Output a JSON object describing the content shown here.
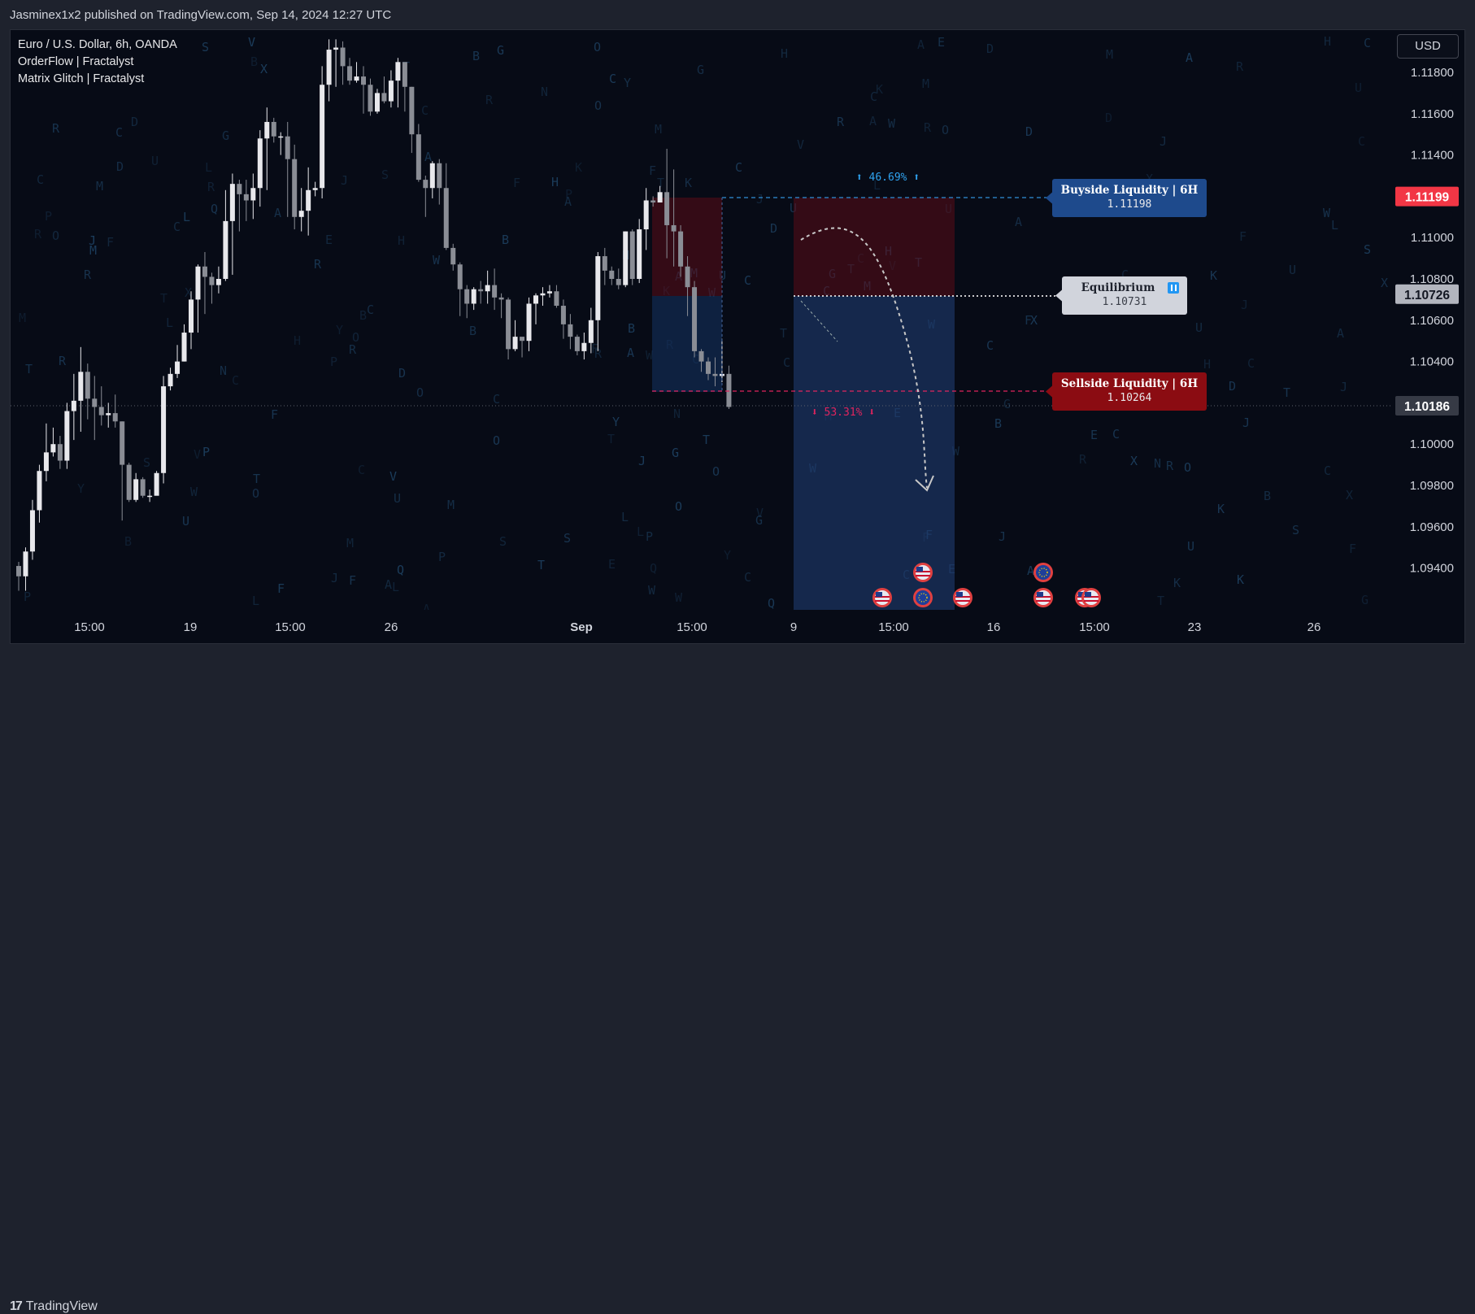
{
  "header": {
    "published_text": "Jasminex1x2 published on TradingView.com, Sep 14, 2024 12:27 UTC"
  },
  "legend": {
    "symbol": "Euro / U.S. Dollar, 6h, OANDA",
    "indicator1": "OrderFlow | Fractalyst",
    "indicator2": "Matrix Glitch | Fractalyst"
  },
  "currency_button": "USD",
  "footer": {
    "brand": "TradingView"
  },
  "colors": {
    "background": "#070b16",
    "up_candle": "#e8e8ec",
    "down_candle": "#8a8d95",
    "buyside": "#1e4a8c",
    "sellside": "#8b0c12",
    "equilibrium": "#d1d4dc",
    "price_red": "#f23645",
    "matrix": "#1c3d5c"
  },
  "chart_data": {
    "type": "candlestick",
    "symbol": "EURUSD",
    "timeframe": "6h",
    "y_ticks": [
      "1.11800",
      "1.11600",
      "1.11400",
      "1.11200",
      "1.11000",
      "1.10800",
      "1.10600",
      "1.10400",
      "1.10200",
      "1.10000",
      "1.09800",
      "1.09600",
      "1.09400"
    ],
    "x_ticks": [
      "15:00",
      "19",
      "15:00",
      "26",
      "Sep",
      "15:00",
      "9",
      "15:00",
      "16",
      "15:00",
      "23",
      "26"
    ],
    "ylim": [
      1.0925,
      1.1195
    ],
    "price_badges": [
      {
        "label": "1.11199",
        "value": 1.11199,
        "style": "red"
      },
      {
        "label": "1.10726",
        "value": 1.10726,
        "style": "gray"
      },
      {
        "label": "1.10186",
        "value": 1.10186,
        "style": "dark"
      }
    ],
    "annotations": {
      "buyside": {
        "title": "Buyside Liquidity",
        "tf": "6H",
        "price_label": "1.11198",
        "value": 1.11198
      },
      "equilibrium": {
        "title": "Equilibrium",
        "price_label": "1.10731",
        "value": 1.10731
      },
      "sellside": {
        "title": "Sellside Liquidity",
        "tf": "6H",
        "price_label": "1.10264",
        "value": 1.10264
      },
      "pct_up": "⬆ 46.69% ⬆",
      "pct_down": "⬇ 53.31% ⬇"
    },
    "candles": [
      [
        1.0941,
        1.0936,
        1.0943,
        1.0929
      ],
      [
        1.0936,
        1.0948,
        1.095,
        1.0929
      ],
      [
        1.0948,
        1.0968,
        1.0973,
        1.0944
      ],
      [
        1.0968,
        1.0987,
        1.099,
        1.0962
      ],
      [
        1.0987,
        1.0996,
        1.101,
        1.0982
      ],
      [
        1.0996,
        1.1,
        1.1008,
        1.0994
      ],
      [
        1.1,
        1.0992,
        1.1004,
        1.0988
      ],
      [
        1.0992,
        1.1016,
        1.102,
        1.0988
      ],
      [
        1.1016,
        1.1021,
        1.1034,
        1.1002
      ],
      [
        1.1021,
        1.1035,
        1.1047,
        1.1006
      ],
      [
        1.1035,
        1.1022,
        1.1039,
        1.1012
      ],
      [
        1.1022,
        1.1018,
        1.1033,
        1.1002
      ],
      [
        1.1018,
        1.1014,
        1.1028,
        1.1009
      ],
      [
        1.1014,
        1.1015,
        1.102,
        1.1008
      ],
      [
        1.1015,
        1.1011,
        1.1024,
        1.1008
      ],
      [
        1.1011,
        1.099,
        1.1011,
        1.0963
      ],
      [
        1.099,
        1.0973,
        1.0991,
        1.0972
      ],
      [
        1.0973,
        1.0983,
        1.0986,
        1.0972
      ],
      [
        1.0983,
        1.0975,
        1.0984,
        1.0974
      ],
      [
        1.0975,
        1.0975,
        1.0978,
        1.0972
      ],
      [
        1.0975,
        1.0986,
        1.0987,
        1.0977
      ],
      [
        1.0986,
        1.1028,
        1.1033,
        1.0981
      ],
      [
        1.1028,
        1.1034,
        1.1037,
        1.1026
      ],
      [
        1.1034,
        1.104,
        1.1048,
        1.1032
      ],
      [
        1.104,
        1.1054,
        1.1058,
        1.104
      ],
      [
        1.1054,
        1.107,
        1.1074,
        1.1046
      ],
      [
        1.107,
        1.1086,
        1.1087,
        1.1054
      ],
      [
        1.1086,
        1.1081,
        1.1093,
        1.1063
      ],
      [
        1.1081,
        1.1077,
        1.1083,
        1.1068
      ],
      [
        1.1077,
        1.108,
        1.1086,
        1.1073
      ],
      [
        1.108,
        1.1108,
        1.1123,
        1.1079
      ],
      [
        1.1108,
        1.1126,
        1.1131,
        1.1082
      ],
      [
        1.1126,
        1.1121,
        1.1128,
        1.1103
      ],
      [
        1.1121,
        1.1118,
        1.1128,
        1.1108
      ],
      [
        1.1118,
        1.1124,
        1.1131,
        1.1109
      ],
      [
        1.1124,
        1.1148,
        1.1152,
        1.1115
      ],
      [
        1.1148,
        1.1156,
        1.1163,
        1.1123
      ],
      [
        1.1156,
        1.1149,
        1.1158,
        1.1146
      ],
      [
        1.1149,
        1.1149,
        1.1151,
        1.114
      ],
      [
        1.1149,
        1.1138,
        1.1156,
        1.111
      ],
      [
        1.1138,
        1.111,
        1.1145,
        1.1104
      ],
      [
        1.111,
        1.1113,
        1.1124,
        1.1103
      ],
      [
        1.1113,
        1.1123,
        1.1134,
        1.1101
      ],
      [
        1.1123,
        1.1124,
        1.1127,
        1.112
      ],
      [
        1.1124,
        1.1174,
        1.1183,
        1.1119
      ],
      [
        1.1174,
        1.1191,
        1.1196,
        1.1166
      ],
      [
        1.1191,
        1.1192,
        1.1196,
        1.1173
      ],
      [
        1.1192,
        1.1183,
        1.1195,
        1.1174
      ],
      [
        1.1183,
        1.1176,
        1.1187,
        1.1174
      ],
      [
        1.1176,
        1.1178,
        1.1185,
        1.1175
      ],
      [
        1.1178,
        1.1174,
        1.1183,
        1.116
      ],
      [
        1.1174,
        1.1161,
        1.1177,
        1.1159
      ],
      [
        1.1161,
        1.117,
        1.1172,
        1.116
      ],
      [
        1.117,
        1.1166,
        1.1178,
        1.1165
      ],
      [
        1.1166,
        1.1176,
        1.1181,
        1.1163
      ],
      [
        1.1176,
        1.1185,
        1.1187,
        1.1163
      ],
      [
        1.1185,
        1.1173,
        1.1184,
        1.1161
      ],
      [
        1.1173,
        1.115,
        1.1173,
        1.1141
      ],
      [
        1.115,
        1.1128,
        1.1155,
        1.1127
      ],
      [
        1.1128,
        1.1124,
        1.113,
        1.111
      ],
      [
        1.1124,
        1.1136,
        1.1137,
        1.1119
      ],
      [
        1.1136,
        1.1124,
        1.1138,
        1.1116
      ],
      [
        1.1124,
        1.1095,
        1.1136,
        1.1094
      ],
      [
        1.1095,
        1.1087,
        1.1097,
        1.1084
      ],
      [
        1.1087,
        1.1075,
        1.1088,
        1.1062
      ],
      [
        1.1075,
        1.1068,
        1.1077,
        1.1061
      ],
      [
        1.1068,
        1.1075,
        1.1076,
        1.1065
      ],
      [
        1.1075,
        1.1074,
        1.1079,
        1.1068
      ],
      [
        1.1074,
        1.1077,
        1.1084,
        1.1068
      ],
      [
        1.1077,
        1.1071,
        1.1085,
        1.1065
      ],
      [
        1.1071,
        1.107,
        1.1073,
        1.1061
      ],
      [
        1.107,
        1.1046,
        1.1071,
        1.1041
      ],
      [
        1.1046,
        1.1052,
        1.106,
        1.1045
      ],
      [
        1.1052,
        1.105,
        1.1051,
        1.1042
      ],
      [
        1.105,
        1.1068,
        1.1071,
        1.1045
      ],
      [
        1.1068,
        1.1072,
        1.1073,
        1.1058
      ],
      [
        1.1072,
        1.1073,
        1.1076,
        1.1067
      ],
      [
        1.1073,
        1.1074,
        1.1077,
        1.1071
      ],
      [
        1.1074,
        1.1067,
        1.1077,
        1.1066
      ],
      [
        1.1067,
        1.1058,
        1.107,
        1.1051
      ],
      [
        1.1058,
        1.1052,
        1.1063,
        1.1046
      ],
      [
        1.1052,
        1.1045,
        1.1053,
        1.1043
      ],
      [
        1.1045,
        1.1049,
        1.1054,
        1.1041
      ],
      [
        1.1049,
        1.106,
        1.1066,
        1.1044
      ],
      [
        1.106,
        1.1091,
        1.1093,
        1.1045
      ],
      [
        1.1091,
        1.1084,
        1.1095,
        1.1077
      ],
      [
        1.1084,
        1.108,
        1.1086,
        1.1077
      ],
      [
        1.108,
        1.1077,
        1.1085,
        1.1075
      ],
      [
        1.1077,
        1.1103,
        1.1103,
        1.1076
      ],
      [
        1.1103,
        1.108,
        1.1104,
        1.1077
      ],
      [
        1.108,
        1.1104,
        1.1109,
        1.1078
      ],
      [
        1.1104,
        1.1118,
        1.1124,
        1.1094
      ],
      [
        1.1118,
        1.1117,
        1.112,
        1.1115
      ],
      [
        1.1117,
        1.1122,
        1.1125,
        1.1117
      ],
      [
        1.1122,
        1.1106,
        1.1143,
        1.109
      ],
      [
        1.1106,
        1.1103,
        1.1133,
        1.1086
      ],
      [
        1.1103,
        1.1086,
        1.1106,
        1.1081
      ],
      [
        1.1086,
        1.1076,
        1.1091,
        1.1062
      ],
      [
        1.1076,
        1.1045,
        1.1079,
        1.1042
      ],
      [
        1.1045,
        1.104,
        1.1046,
        1.1035
      ],
      [
        1.104,
        1.1034,
        1.1042,
        1.1031
      ],
      [
        1.1034,
        1.1033,
        1.1042,
        1.1028
      ],
      [
        1.1033,
        1.1034,
        1.1051,
        1.103
      ],
      [
        1.1034,
        1.1018,
        1.1038,
        1.1017
      ]
    ],
    "events": [
      {
        "x": 1085,
        "row": 2,
        "flag": "us"
      },
      {
        "x": 1135,
        "row": 1,
        "flag": "us"
      },
      {
        "x": 1135,
        "row": 2,
        "flag": "eu"
      },
      {
        "x": 1184,
        "row": 2,
        "flag": "us"
      },
      {
        "x": 1283,
        "row": 1,
        "flag": "eu"
      },
      {
        "x": 1283,
        "row": 2,
        "flag": "us"
      },
      {
        "x": 1334,
        "row": 2,
        "flag": "us"
      },
      {
        "x": 1342,
        "row": 2,
        "flag": "us"
      }
    ]
  }
}
